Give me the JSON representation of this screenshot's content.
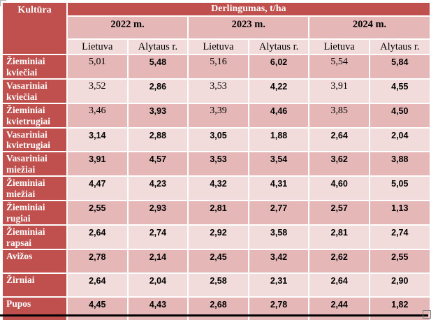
{
  "chart_data": {
    "type": "table",
    "title": "Derlingumas, t/ha",
    "corner_header": "Kultūra",
    "year_groups": [
      "2022 m.",
      "2023 m.",
      "2024 m."
    ],
    "region_headers": [
      "Lietuva",
      "Alytaus r.",
      "Lietuva",
      "Alytaus r.",
      "Lietuva",
      "Alytaus r."
    ],
    "rows": [
      {
        "crop": "Žieminiai kviečiai",
        "values": [
          "5,01",
          "5,48",
          "5,16",
          "6,02",
          "5,54",
          "5,84"
        ]
      },
      {
        "crop": "Vasariniai kviečiai",
        "values": [
          "3,52",
          "2,86",
          "3,53",
          "4,22",
          "3,91",
          "4,55"
        ]
      },
      {
        "crop": "Žieminiai kvietrugiai",
        "values": [
          "3,46",
          "3,93",
          "3,39",
          "4,46",
          "3,85",
          "4,50"
        ]
      },
      {
        "crop": "Vasariniai kvietrugiai",
        "values": [
          "3,14",
          "2,88",
          "3,05",
          "1,88",
          "2,64",
          "2,04"
        ]
      },
      {
        "crop": "Vasariniai miežiai",
        "values": [
          "3,91",
          "4,57",
          "3,53",
          "3,54",
          "3,62",
          "3,88"
        ]
      },
      {
        "crop": "Žieminiai miežiai",
        "values": [
          "4,47",
          "4,23",
          "4,32",
          "4,31",
          "4,60",
          "5,05"
        ]
      },
      {
        "crop": "Žieminiai rugiai",
        "values": [
          "2,55",
          "2,93",
          "2,81",
          "2,77",
          "2,57",
          "1,13"
        ]
      },
      {
        "crop": "Žieminiai rapsai",
        "values": [
          "2,64",
          "2,74",
          "2,92",
          "3,58",
          "2,81",
          "2,74"
        ]
      },
      {
        "crop": "Avižos",
        "values": [
          "2,78",
          "2,14",
          "2,45",
          "3,42",
          "2,62",
          "2,55"
        ]
      },
      {
        "crop": "Žirniai",
        "values": [
          "2,64",
          "2,04",
          "2,58",
          "2,31",
          "2,64",
          "2,90"
        ]
      },
      {
        "crop": "Pupos",
        "values": [
          "4,45",
          "4,43",
          "2,68",
          "2,78",
          "2,44",
          "1,82"
        ]
      }
    ],
    "colors": {
      "header_red": "#C0504D",
      "row_pink_dark": "#E5B8B7",
      "row_pink_light": "#F2DBDB",
      "header_text": "#FFFFFF",
      "body_text": "#000000",
      "bottom_rule": "#000000"
    },
    "layout_hints": {
      "units": "t/ha",
      "decimal_separator": ",",
      "first_column_merged_header": true,
      "alternating_row_shading": true
    }
  }
}
